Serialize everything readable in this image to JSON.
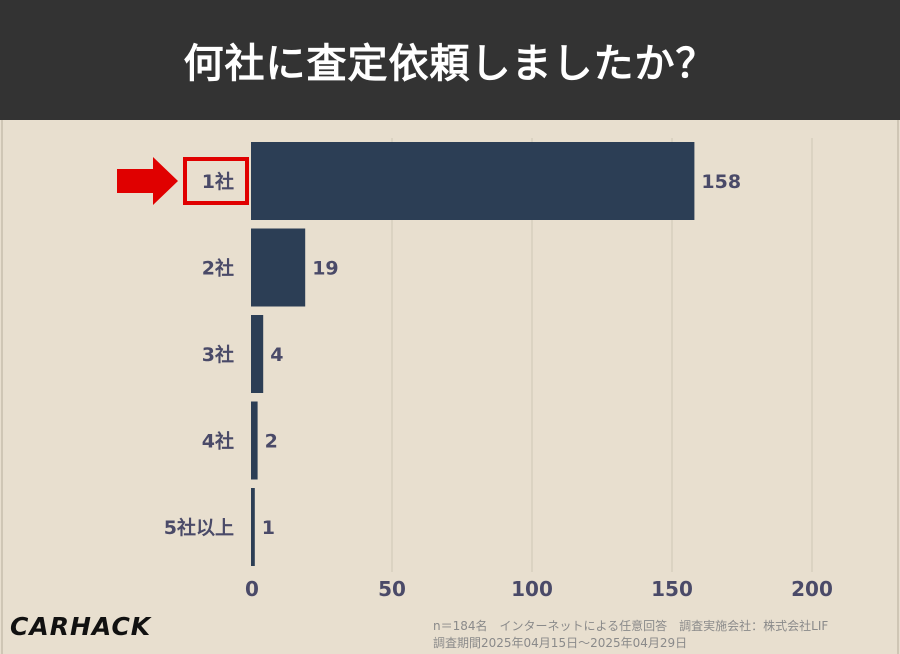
{
  "header": {
    "title": "何社に査定依頼しましたか？"
  },
  "chart_data": {
    "type": "bar",
    "orientation": "horizontal",
    "categories": [
      "1社",
      "2社",
      "3社",
      "4社",
      "5社以上"
    ],
    "values": [
      158,
      19,
      4,
      2,
      1
    ],
    "xlim": [
      0,
      200
    ],
    "xticks": [
      0,
      50,
      100,
      150,
      200
    ],
    "xtick_labels": [
      "0",
      "50",
      "100",
      "150",
      "200"
    ],
    "grid": true,
    "highlight_index": 0,
    "colors": {
      "bar": "#2c3e55",
      "label": "#4a4a68",
      "highlight": "#e00000",
      "grid": "#d3cbbb"
    }
  },
  "footer": {
    "logo": "CARHACK",
    "note_line1": "n＝184名　インターネットによる任意回答　調査実施会社：株式会社LIF",
    "note_line2": "調査期間2025年04月15日〜2025年04月29日"
  }
}
